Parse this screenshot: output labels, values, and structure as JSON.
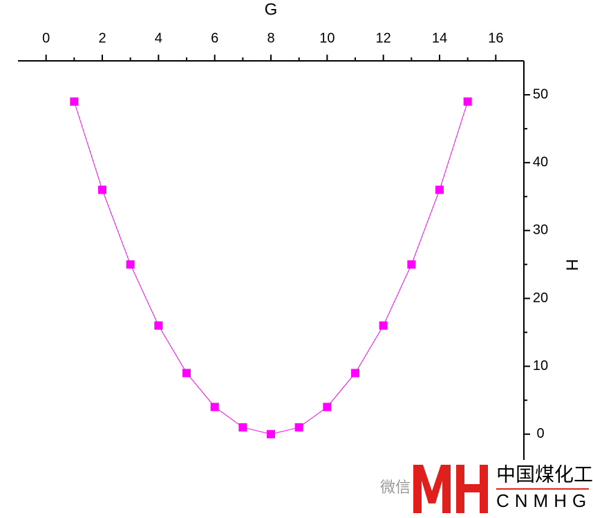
{
  "chart_data": {
    "type": "line",
    "x_label": "G",
    "y_label": "H",
    "x": [
      1,
      2,
      3,
      4,
      5,
      6,
      7,
      8,
      9,
      10,
      11,
      12,
      13,
      14,
      15
    ],
    "series": [
      {
        "color": "#ff00ff",
        "values": [
          49,
          36,
          25,
          16,
          9,
          4,
          1,
          0,
          1,
          4,
          9,
          16,
          25,
          36,
          49
        ]
      }
    ],
    "xlim": [
      -1,
      17
    ],
    "xticks": [
      0,
      2,
      4,
      6,
      8,
      10,
      12,
      14,
      16
    ],
    "xminorticks": [
      1,
      3,
      5,
      7,
      9,
      11,
      13,
      15
    ],
    "ylim": [
      -4,
      55
    ],
    "yticks": [
      0,
      10,
      20,
      30,
      40,
      50
    ],
    "yminorticks": [
      5,
      15,
      25,
      35,
      45
    ],
    "xaxis_position": "top",
    "yaxis_position": "right"
  },
  "watermark": {
    "wechat": "微信",
    "name": "中国煤化工",
    "code": "CNMHG"
  }
}
